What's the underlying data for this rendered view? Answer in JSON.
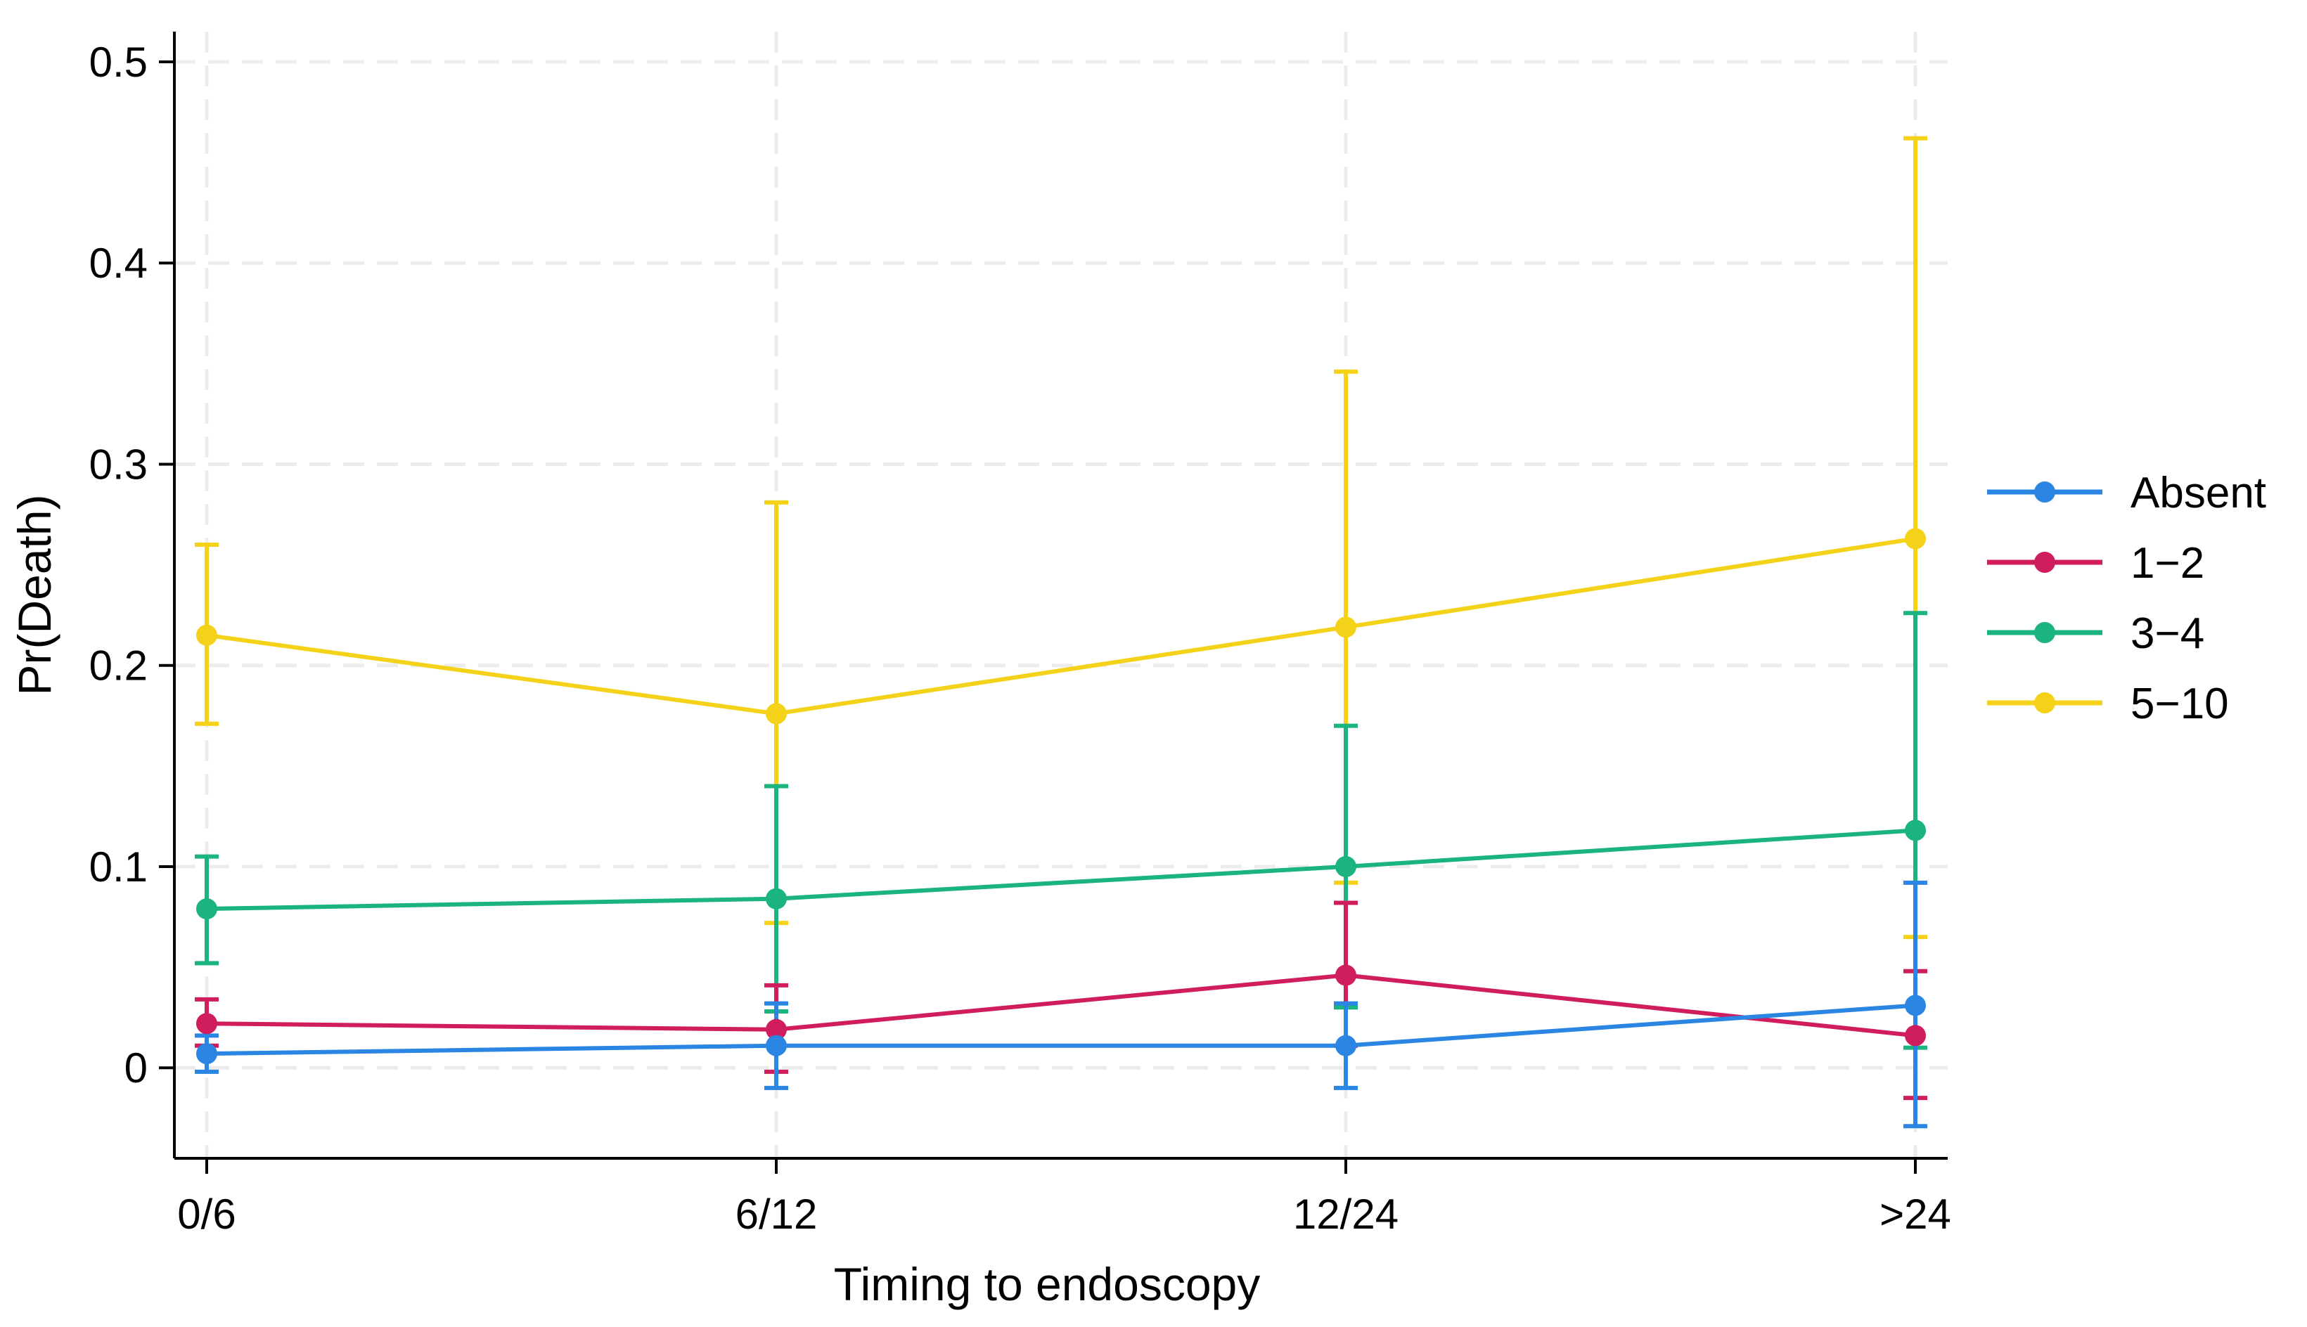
{
  "chart_data": {
    "type": "line",
    "title": "",
    "xlabel": "Timing to endoscopy",
    "ylabel": "Pr(Death)",
    "categories": [
      "0/6",
      "6/12",
      "12/24",
      ">24"
    ],
    "yticks": [
      "0",
      "0.1",
      "0.2",
      "0.3",
      "0.4",
      "0.5"
    ],
    "ylim": [
      -0.045,
      0.515
    ],
    "grid": true,
    "legend_position": "right",
    "series": [
      {
        "name": "Absent",
        "color": "#2a86e2",
        "values": [
          0.007,
          0.011,
          0.011,
          0.031
        ],
        "lower": [
          -0.002,
          -0.01,
          -0.01,
          -0.029
        ],
        "upper": [
          0.016,
          0.032,
          0.032,
          0.092
        ]
      },
      {
        "name": "1−2",
        "color": "#cf1d5e",
        "values": [
          0.022,
          0.019,
          0.046,
          0.016
        ],
        "lower": [
          0.011,
          -0.002,
          0.011,
          -0.015
        ],
        "upper": [
          0.034,
          0.041,
          0.082,
          0.048
        ]
      },
      {
        "name": "3−4",
        "color": "#1bb37e",
        "values": [
          0.079,
          0.084,
          0.1,
          0.118
        ],
        "lower": [
          0.052,
          0.028,
          0.03,
          0.01
        ],
        "upper": [
          0.105,
          0.14,
          0.17,
          0.226
        ]
      },
      {
        "name": "5−10",
        "color": "#f5d21a",
        "values": [
          0.215,
          0.176,
          0.219,
          0.263
        ],
        "lower": [
          0.171,
          0.072,
          0.092,
          0.065
        ],
        "upper": [
          0.26,
          0.281,
          0.346,
          0.462
        ]
      }
    ]
  }
}
